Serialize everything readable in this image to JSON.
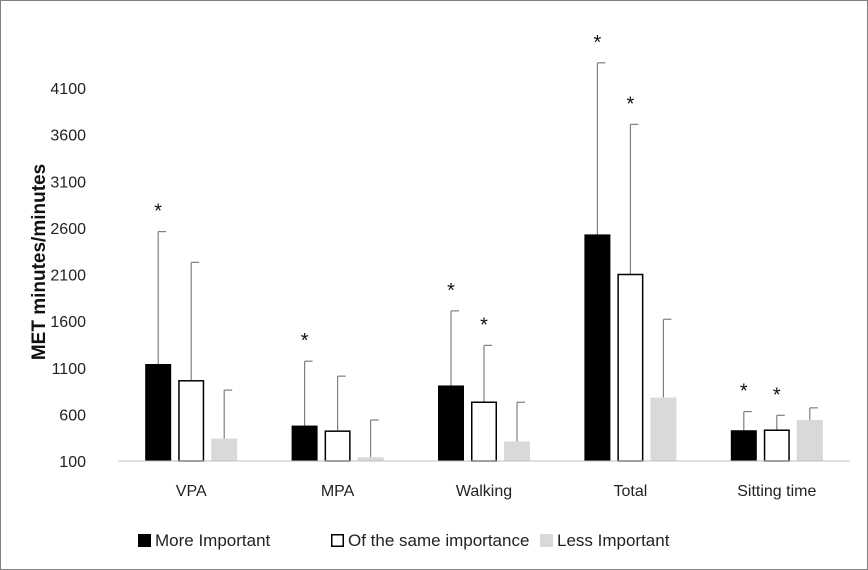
{
  "chart_data": {
    "type": "bar",
    "title": "",
    "xlabel": "",
    "ylabel": "MET minutes/minutes",
    "ylim": [
      100,
      4300
    ],
    "yticks": [
      100,
      600,
      1100,
      1600,
      2100,
      2600,
      3100,
      3600,
      4100
    ],
    "grid": false,
    "legend_position": "bottom",
    "categories": [
      "VPA",
      "MPA",
      "Walking",
      "Total",
      "Sitting time"
    ],
    "series": [
      {
        "name": "More Important",
        "color": "#000000",
        "style": "filled",
        "values": [
          1140,
          480,
          910,
          2530,
          430
        ],
        "error_upper": [
          2560,
          1170,
          1710,
          4370,
          630
        ],
        "significant": [
          true,
          true,
          true,
          true,
          true
        ]
      },
      {
        "name": "Of the same importance",
        "color": "#ffffff",
        "style": "outline",
        "values": [
          960,
          420,
          730,
          2100,
          430
        ],
        "error_upper": [
          2230,
          1010,
          1340,
          3710,
          590
        ],
        "significant": [
          false,
          false,
          true,
          true,
          true
        ]
      },
      {
        "name": "Less Important",
        "color": "#d9d9d9",
        "style": "filled",
        "values": [
          340,
          140,
          310,
          780,
          540
        ],
        "error_upper": [
          860,
          540,
          730,
          1620,
          670
        ],
        "significant": [
          false,
          false,
          false,
          false,
          false
        ]
      }
    ],
    "significance_marker": "*"
  }
}
